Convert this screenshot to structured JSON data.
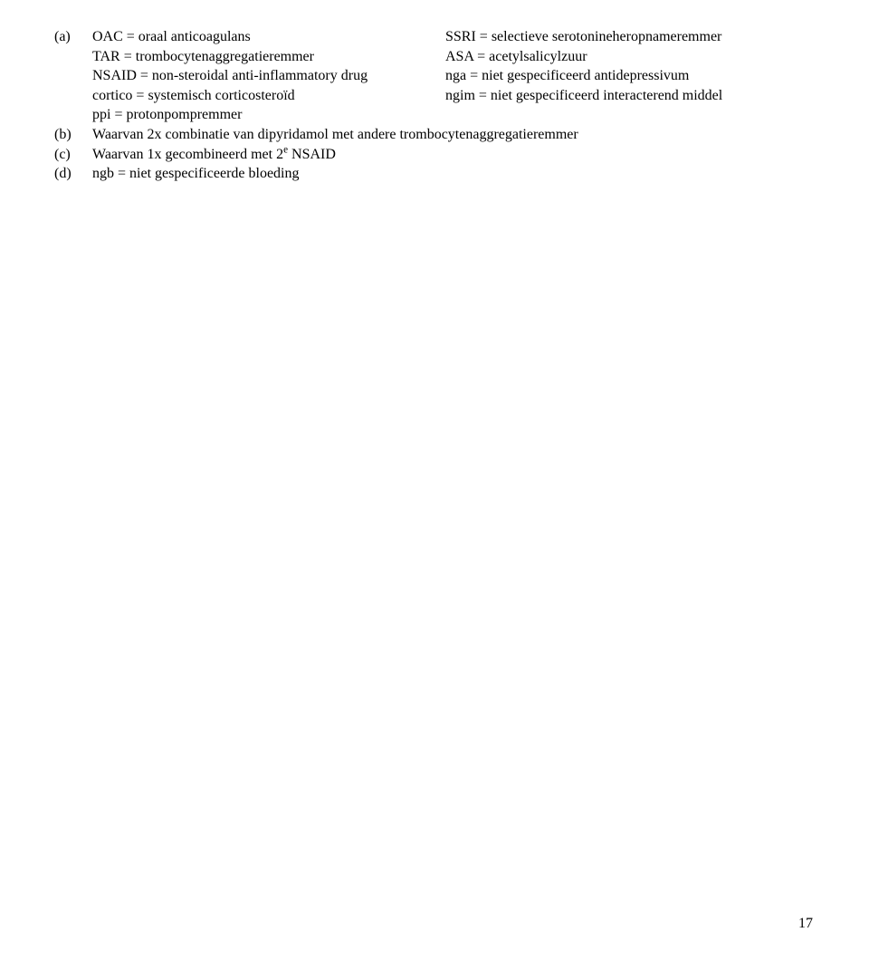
{
  "section_a": {
    "label": "(a)",
    "rows": [
      {
        "left": "OAC = oraal anticoagulans",
        "right": "SSRI = selectieve serotonineheropnameremmer"
      },
      {
        "left": "TAR = trombocytenaggregatieremmer",
        "right": "ASA = acetylsalicylzuur"
      },
      {
        "left": "NSAID = non-steroidal anti-inflammatory drug",
        "right": "nga = niet gespecificeerd antidepressivum"
      },
      {
        "left": "cortico = systemisch corticosteroïd",
        "right": "ngim = niet gespecificeerd interacterend middel"
      },
      {
        "left": "ppi = protonpompremmer",
        "right": ""
      }
    ]
  },
  "section_b": {
    "label": "(b)",
    "text": "Waarvan 2x combinatie van dipyridamol met andere trombocytenaggregatieremmer"
  },
  "section_c": {
    "label": "(c)",
    "text_pre": "Waarvan 1x gecombineerd met 2",
    "text_sup": "e",
    "text_post": " NSAID"
  },
  "section_d": {
    "label": "(d)",
    "text": "ngb = niet gespecificeerde bloeding"
  },
  "page_number": "17"
}
